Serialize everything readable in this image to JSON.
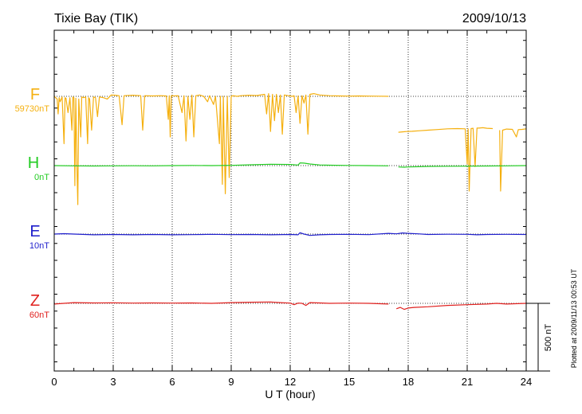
{
  "chart_data": {
    "type": "line",
    "title": "Tixie Bay (TIK)",
    "date": "2009/10/13",
    "xlabel": "U T (hour)",
    "xlim": [
      0,
      24
    ],
    "xticks": [
      0,
      3,
      6,
      9,
      12,
      15,
      18,
      21,
      24
    ],
    "scale_bar_label": "500 nT",
    "scale_bar_nT": 500,
    "plotted_note": "Plotted at 2009/11/13 00:53 UT",
    "series": [
      {
        "name": "F",
        "baseline_label": "59730nT",
        "color": "#f5b00f",
        "points": [
          [
            0.0,
            0
          ],
          [
            0.15,
            -20
          ],
          [
            0.2,
            -130
          ],
          [
            0.25,
            -10
          ],
          [
            0.3,
            -40
          ],
          [
            0.4,
            -5
          ],
          [
            0.5,
            -350
          ],
          [
            0.55,
            -10
          ],
          [
            0.6,
            -15
          ],
          [
            0.7,
            -120
          ],
          [
            0.8,
            -10
          ],
          [
            0.9,
            -250
          ],
          [
            0.95,
            -5
          ],
          [
            1.0,
            -10
          ],
          [
            1.05,
            -660
          ],
          [
            1.1,
            -15
          ],
          [
            1.15,
            -500
          ],
          [
            1.2,
            -800
          ],
          [
            1.25,
            -20
          ],
          [
            1.35,
            -300
          ],
          [
            1.4,
            -5
          ],
          [
            1.5,
            -10
          ],
          [
            1.6,
            -5
          ],
          [
            1.7,
            -350
          ],
          [
            1.75,
            -10
          ],
          [
            1.8,
            -20
          ],
          [
            1.9,
            -250
          ],
          [
            2.0,
            -5
          ],
          [
            2.1,
            -10
          ],
          [
            2.2,
            -150
          ],
          [
            2.3,
            -5
          ],
          [
            2.5,
            -10
          ],
          [
            2.7,
            -20
          ],
          [
            2.9,
            10
          ],
          [
            3.1,
            8
          ],
          [
            3.3,
            5
          ],
          [
            3.45,
            -210
          ],
          [
            3.55,
            5
          ],
          [
            4.0,
            8
          ],
          [
            4.4,
            5
          ],
          [
            4.5,
            -250
          ],
          [
            4.6,
            5
          ],
          [
            5.0,
            3
          ],
          [
            5.4,
            5
          ],
          [
            5.7,
            3
          ],
          [
            5.8,
            -170
          ],
          [
            5.85,
            5
          ],
          [
            5.9,
            -300
          ],
          [
            5.95,
            5
          ],
          [
            6.1,
            3
          ],
          [
            6.3,
            5
          ],
          [
            6.5,
            -120
          ],
          [
            6.6,
            5
          ],
          [
            6.7,
            -330
          ],
          [
            6.8,
            0
          ],
          [
            6.9,
            -170
          ],
          [
            7.0,
            10
          ],
          [
            7.1,
            -300
          ],
          [
            7.2,
            5
          ],
          [
            7.4,
            10
          ],
          [
            7.6,
            0
          ],
          [
            7.8,
            -40
          ],
          [
            7.9,
            5
          ],
          [
            8.1,
            -60
          ],
          [
            8.2,
            0
          ],
          [
            8.4,
            -350
          ],
          [
            8.45,
            0
          ],
          [
            8.55,
            -650
          ],
          [
            8.6,
            0
          ],
          [
            8.7,
            -720
          ],
          [
            8.8,
            0
          ],
          [
            8.9,
            -600
          ],
          [
            9.0,
            0
          ],
          [
            9.1,
            5
          ],
          [
            9.3,
            0
          ],
          [
            9.5,
            5
          ],
          [
            9.9,
            8
          ],
          [
            10.3,
            6
          ],
          [
            10.7,
            15
          ],
          [
            10.8,
            -130
          ],
          [
            10.9,
            20
          ],
          [
            11.0,
            -260
          ],
          [
            11.1,
            15
          ],
          [
            11.2,
            -180
          ],
          [
            11.3,
            15
          ],
          [
            11.4,
            -120
          ],
          [
            11.5,
            10
          ],
          [
            11.6,
            -280
          ],
          [
            11.7,
            10
          ],
          [
            11.9,
            5
          ],
          [
            12.1,
            0
          ],
          [
            12.2,
            5
          ],
          [
            12.3,
            -120
          ],
          [
            12.4,
            3
          ],
          [
            12.5,
            -200
          ],
          [
            12.6,
            5
          ],
          [
            12.7,
            -50
          ],
          [
            12.8,
            10
          ],
          [
            12.9,
            -280
          ],
          [
            13.0,
            15
          ],
          [
            13.2,
            20
          ],
          [
            13.5,
            10
          ],
          [
            14.0,
            5
          ],
          [
            14.5,
            3
          ],
          [
            15.0,
            2
          ],
          [
            15.5,
            3
          ],
          [
            16.0,
            2
          ],
          [
            16.5,
            1
          ],
          [
            17.0,
            0
          ],
          [
            17.5,
            null
          ],
          [
            17.5,
            -265
          ],
          [
            17.9,
            -260
          ],
          [
            18.2,
            -258
          ],
          [
            18.6,
            -254
          ],
          [
            19.0,
            -250
          ],
          [
            19.5,
            -245
          ],
          [
            20.0,
            -240
          ],
          [
            20.5,
            -238
          ],
          [
            20.9,
            -240
          ],
          [
            21.0,
            -500
          ],
          [
            21.05,
            -240
          ],
          [
            21.1,
            -700
          ],
          [
            21.2,
            -238
          ],
          [
            21.3,
            -236
          ],
          [
            21.4,
            -520
          ],
          [
            21.5,
            -234
          ],
          [
            21.6,
            -235
          ],
          [
            21.8,
            -232
          ],
          [
            22.0,
            -236
          ],
          [
            22.3,
            -238
          ],
          [
            22.6,
            null
          ],
          [
            22.65,
            -250
          ],
          [
            22.7,
            -700
          ],
          [
            22.8,
            -250
          ],
          [
            23.0,
            -242
          ],
          [
            23.3,
            -244
          ],
          [
            23.5,
            -300
          ],
          [
            23.6,
            -246
          ],
          [
            23.8,
            -244
          ],
          [
            24.0,
            -240
          ]
        ]
      },
      {
        "name": "H",
        "baseline_label": "0nT",
        "color": "#22cc22",
        "points": [
          [
            0,
            0
          ],
          [
            1,
            -2
          ],
          [
            2,
            -3
          ],
          [
            3,
            -2
          ],
          [
            4,
            -1
          ],
          [
            5,
            -2
          ],
          [
            6,
            0
          ],
          [
            7,
            1
          ],
          [
            8,
            0
          ],
          [
            9,
            2
          ],
          [
            10,
            6
          ],
          [
            11,
            10
          ],
          [
            12,
            8
          ],
          [
            12.4,
            4
          ],
          [
            12.5,
            20
          ],
          [
            12.7,
            18
          ],
          [
            13,
            12
          ],
          [
            13.5,
            5
          ],
          [
            14,
            3
          ],
          [
            15,
            1
          ],
          [
            16,
            0
          ],
          [
            17,
            -2
          ],
          [
            17.4,
            null
          ],
          [
            17.5,
            -10
          ],
          [
            17.8,
            -12
          ],
          [
            18,
            -10
          ],
          [
            18.5,
            -8
          ],
          [
            19,
            -6
          ],
          [
            20,
            -5
          ],
          [
            21,
            -4
          ],
          [
            22,
            -3
          ],
          [
            23,
            -2
          ],
          [
            24,
            0
          ]
        ]
      },
      {
        "name": "E",
        "baseline_label": "10nT",
        "color": "#1f1fcc",
        "points": [
          [
            0,
            0
          ],
          [
            0.5,
            3
          ],
          [
            1,
            0
          ],
          [
            2,
            -5
          ],
          [
            3,
            -3
          ],
          [
            4,
            -5
          ],
          [
            5,
            -3
          ],
          [
            6,
            -5
          ],
          [
            7,
            -4
          ],
          [
            8,
            -2
          ],
          [
            9,
            -4
          ],
          [
            10,
            -3
          ],
          [
            11,
            -5
          ],
          [
            12,
            -3
          ],
          [
            12.4,
            -5
          ],
          [
            12.5,
            10
          ],
          [
            12.7,
            0
          ],
          [
            13,
            -10
          ],
          [
            13.5,
            -5
          ],
          [
            14,
            -3
          ],
          [
            15,
            -2
          ],
          [
            16,
            -4
          ],
          [
            17,
            5
          ],
          [
            17.4,
            2
          ],
          [
            17.7,
            8
          ],
          [
            18,
            5
          ],
          [
            18.5,
            2
          ],
          [
            19,
            -3
          ],
          [
            20,
            -1
          ],
          [
            21,
            -2
          ],
          [
            21.5,
            -5
          ],
          [
            22,
            -3
          ],
          [
            23,
            -2
          ],
          [
            24,
            -3
          ]
        ]
      },
      {
        "name": "Z",
        "baseline_label": "60nT",
        "color": "#e0201e",
        "points": [
          [
            0,
            -5
          ],
          [
            0.5,
            0
          ],
          [
            1,
            5
          ],
          [
            2,
            3
          ],
          [
            3,
            4
          ],
          [
            4,
            2
          ],
          [
            5,
            3
          ],
          [
            6,
            2
          ],
          [
            7,
            3
          ],
          [
            8,
            0
          ],
          [
            9,
            5
          ],
          [
            10,
            8
          ],
          [
            11,
            10
          ],
          [
            11.5,
            5
          ],
          [
            12,
            2
          ],
          [
            12.2,
            -10
          ],
          [
            12.4,
            2
          ],
          [
            12.6,
            0
          ],
          [
            12.8,
            -15
          ],
          [
            13.0,
            5
          ],
          [
            13.5,
            3
          ],
          [
            14,
            0
          ],
          [
            15,
            2
          ],
          [
            16,
            0
          ],
          [
            17,
            -5
          ],
          [
            17.3,
            null
          ],
          [
            17.4,
            -40
          ],
          [
            17.6,
            -30
          ],
          [
            17.8,
            -45
          ],
          [
            18,
            -35
          ],
          [
            18.3,
            -30
          ],
          [
            19,
            -25
          ],
          [
            20,
            -15
          ],
          [
            21,
            -10
          ],
          [
            22,
            -5
          ],
          [
            22.5,
            0
          ],
          [
            23,
            -5
          ],
          [
            24,
            0
          ]
        ]
      }
    ],
    "panel_labels": [
      {
        "letter": "F",
        "value": "59730nT"
      },
      {
        "letter": "H",
        "value": "0nT"
      },
      {
        "letter": "E",
        "value": "10nT"
      },
      {
        "letter": "Z",
        "value": "60nT"
      }
    ]
  }
}
